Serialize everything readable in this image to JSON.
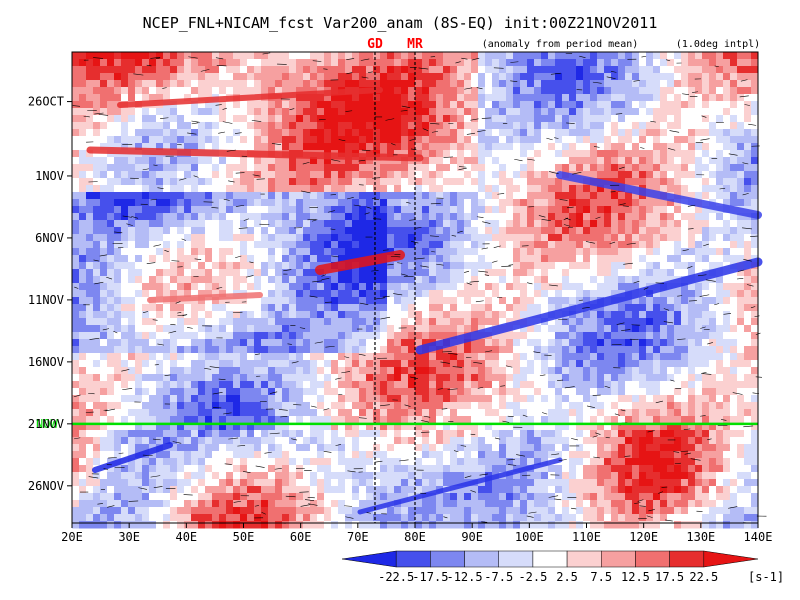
{
  "chart_data": {
    "type": "heatmap",
    "title": "NCEP_FNL+NICAM_fcst Var200_anam (8S-EQ) init:00Z21NOV2011",
    "subtitle_left": "(anomaly from period mean)",
    "subtitle_right": "(1.0deg intpl)",
    "xlabel": "",
    "ylabel": "",
    "x_ticks": [
      "20E",
      "30E",
      "40E",
      "50E",
      "60E",
      "70E",
      "80E",
      "90E",
      "100E",
      "110E",
      "120E",
      "130E",
      "140E"
    ],
    "x_range": [
      20,
      140
    ],
    "y_ticks": [
      "26OCT",
      "1NOV",
      "6NOV",
      "11NOV",
      "16NOV",
      "21NOV",
      "26NOV"
    ],
    "y_tick_days": [
      -26,
      -20,
      -15,
      -10,
      -5,
      0,
      5
    ],
    "y_range_days": [
      -30,
      8
    ],
    "init_line_label": "NOW",
    "init_line_day": 0,
    "init_line_color": "#00e000",
    "markers": [
      {
        "label": "GD",
        "lon": 73,
        "color": "#ff0000"
      },
      {
        "label": "MR",
        "lon": 80,
        "color": "#ff0000"
      }
    ],
    "colorbar": {
      "levels": [
        "-22.5",
        "-17.5",
        "-12.5",
        "-7.5",
        "-2.5",
        "2.5",
        "7.5",
        "12.5",
        "17.5",
        "22.5"
      ],
      "colors": [
        "#1e28e6",
        "#4650ec",
        "#7d87f0",
        "#b4bcf6",
        "#d6dcfa",
        "#ffffff",
        "#fbd0d0",
        "#f6a0a0",
        "#f07070",
        "#e62e2e",
        "#e61414"
      ],
      "unit": "[s-1]"
    }
  }
}
